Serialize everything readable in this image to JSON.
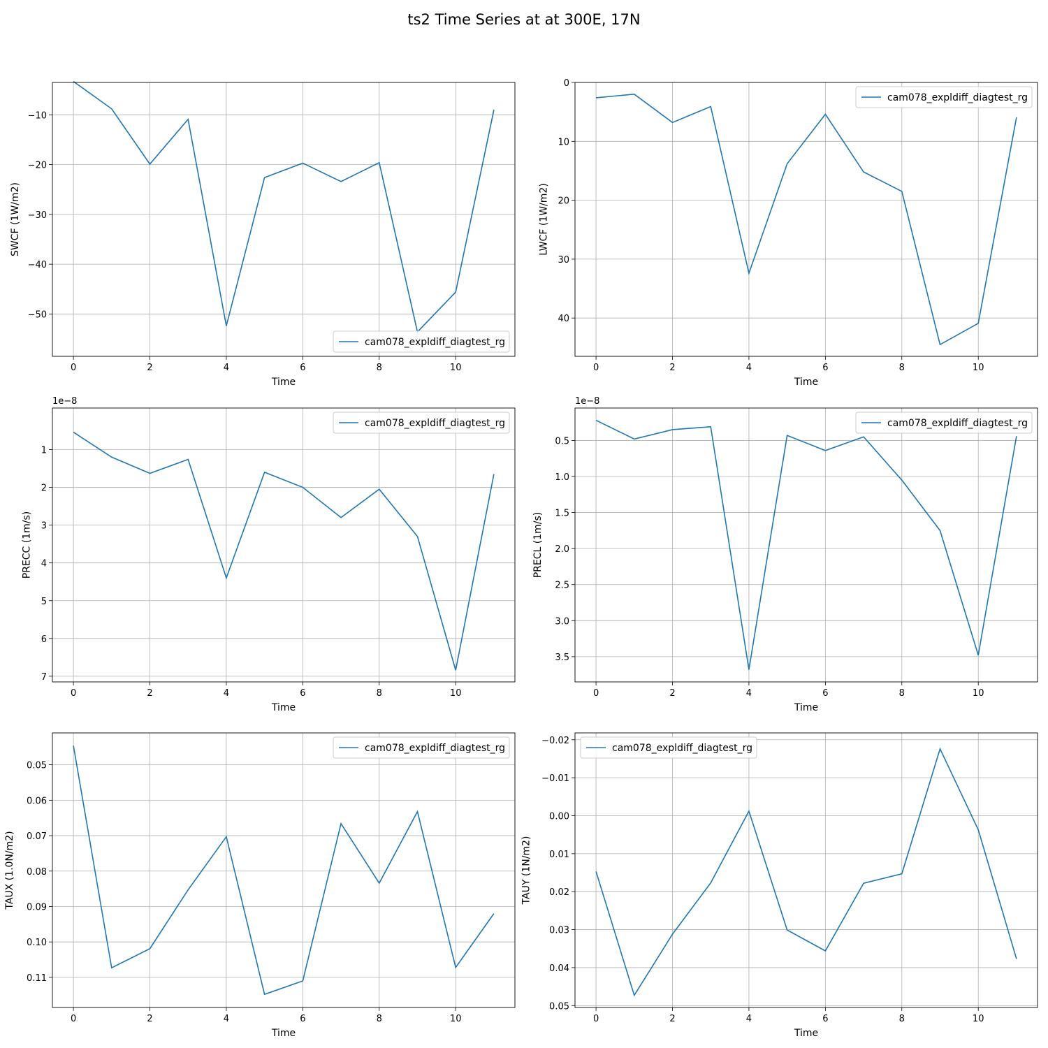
{
  "title": "ts2 Time Series at at 300E, 17N",
  "colors": {
    "line": "#1f77b4",
    "grid": "#b0b0b0",
    "axes": "#000000"
  },
  "chart_data": [
    {
      "type": "line",
      "xlabel": "Time",
      "ylabel": "SWCF (1W/m2)",
      "xlim": [
        -0.55,
        11.55
      ],
      "ylim": [
        -3.5,
        -58.5
      ],
      "xticks": [
        "0",
        "2",
        "4",
        "6",
        "8",
        "10"
      ],
      "yticks": [
        {
          "v": -10,
          "label": "−10"
        },
        {
          "v": -20,
          "label": "−20"
        },
        {
          "v": -30,
          "label": "−30"
        },
        {
          "v": -40,
          "label": "−40"
        },
        {
          "v": -50,
          "label": "−50"
        }
      ],
      "offset": "",
      "legend_loc": "lower-right",
      "grid": true,
      "series": [
        {
          "name": "cam078_expldiff_diagtest_rg",
          "x": [
            0,
            1,
            2,
            3,
            4,
            5,
            6,
            7,
            8,
            9,
            10,
            11
          ],
          "y": [
            -3.3,
            -8.8,
            -19.9,
            -10.9,
            -52.4,
            -22.6,
            -19.7,
            -23.4,
            -19.6,
            -53.6,
            -45.6,
            -9.0
          ]
        }
      ]
    },
    {
      "type": "line",
      "xlabel": "Time",
      "ylabel": "LWCF (1W/m2)",
      "xlim": [
        -0.55,
        11.55
      ],
      "ylim": [
        0,
        46.5
      ],
      "xticks": [
        "0",
        "2",
        "4",
        "6",
        "8",
        "10"
      ],
      "yticks": [
        {
          "v": 0,
          "label": "0"
        },
        {
          "v": 10,
          "label": "10"
        },
        {
          "v": 20,
          "label": "20"
        },
        {
          "v": 30,
          "label": "30"
        },
        {
          "v": 40,
          "label": "40"
        }
      ],
      "offset": "",
      "legend_loc": "upper-right",
      "grid": true,
      "series": [
        {
          "name": "cam078_expldiff_diagtest_rg",
          "x": [
            0,
            1,
            2,
            3,
            4,
            5,
            6,
            7,
            8,
            9,
            10,
            11
          ],
          "y": [
            2.6,
            2.0,
            6.8,
            4.1,
            32.4,
            13.8,
            5.4,
            15.2,
            18.5,
            44.5,
            40.9,
            5.9
          ]
        }
      ]
    },
    {
      "type": "line",
      "xlabel": "Time",
      "ylabel": "PRECC (1m/s)",
      "xlim": [
        -0.55,
        11.55
      ],
      "ylim": [
        -0.1,
        7.15
      ],
      "xticks": [
        "0",
        "2",
        "4",
        "6",
        "8",
        "10"
      ],
      "yticks": [
        {
          "v": 1,
          "label": "1"
        },
        {
          "v": 2,
          "label": "2"
        },
        {
          "v": 3,
          "label": "3"
        },
        {
          "v": 4,
          "label": "4"
        },
        {
          "v": 5,
          "label": "5"
        },
        {
          "v": 6,
          "label": "6"
        },
        {
          "v": 7,
          "label": "7"
        }
      ],
      "offset": "1e−8",
      "legend_loc": "upper-right",
      "grid": true,
      "series": [
        {
          "name": "cam078_expldiff_diagtest_rg",
          "x": [
            0,
            1,
            2,
            3,
            4,
            5,
            6,
            7,
            8,
            9,
            10,
            11
          ],
          "y": [
            0.54,
            1.2,
            1.63,
            1.26,
            4.4,
            1.6,
            2.0,
            2.8,
            2.05,
            3.3,
            6.84,
            1.65
          ]
        }
      ]
    },
    {
      "type": "line",
      "xlabel": "Time",
      "ylabel": "PRECL (1m/s)",
      "xlim": [
        -0.55,
        11.55
      ],
      "ylim": [
        0.05,
        3.85
      ],
      "xticks": [
        "0",
        "2",
        "4",
        "6",
        "8",
        "10"
      ],
      "yticks": [
        {
          "v": 0.5,
          "label": "0.5"
        },
        {
          "v": 1.0,
          "label": "1.0"
        },
        {
          "v": 1.5,
          "label": "1.5"
        },
        {
          "v": 2.0,
          "label": "2.0"
        },
        {
          "v": 2.5,
          "label": "2.5"
        },
        {
          "v": 3.0,
          "label": "3.0"
        },
        {
          "v": 3.5,
          "label": "3.5"
        }
      ],
      "offset": "1e−8",
      "legend_loc": "upper-right",
      "grid": true,
      "series": [
        {
          "name": "cam078_expldiff_diagtest_rg",
          "x": [
            0,
            1,
            2,
            3,
            4,
            5,
            6,
            7,
            8,
            9,
            10,
            11
          ],
          "y": [
            0.22,
            0.48,
            0.35,
            0.31,
            3.68,
            0.43,
            0.64,
            0.45,
            1.05,
            1.75,
            3.48,
            0.44
          ]
        }
      ]
    },
    {
      "type": "line",
      "xlabel": "Time",
      "ylabel": "TAUX (1.0N/m2)",
      "xlim": [
        -0.55,
        11.55
      ],
      "ylim": [
        0.041,
        0.1185
      ],
      "xticks": [
        "0",
        "2",
        "4",
        "6",
        "8",
        "10"
      ],
      "yticks": [
        {
          "v": 0.05,
          "label": "0.05"
        },
        {
          "v": 0.06,
          "label": "0.06"
        },
        {
          "v": 0.07,
          "label": "0.07"
        },
        {
          "v": 0.08,
          "label": "0.08"
        },
        {
          "v": 0.09,
          "label": "0.09"
        },
        {
          "v": 0.1,
          "label": "0.10"
        },
        {
          "v": 0.11,
          "label": "0.11"
        }
      ],
      "offset": "",
      "legend_loc": "upper-right",
      "grid": true,
      "series": [
        {
          "name": "cam078_expldiff_diagtest_rg",
          "x": [
            0,
            1,
            2,
            3,
            4,
            5,
            6,
            7,
            8,
            9,
            10,
            11
          ],
          "y": [
            0.0446,
            0.1073,
            0.1019,
            0.0853,
            0.0703,
            0.1148,
            0.111,
            0.0666,
            0.0834,
            0.0632,
            0.1072,
            0.092
          ]
        }
      ]
    },
    {
      "type": "line",
      "xlabel": "Time",
      "ylabel": "TAUY (1N/m2)",
      "xlim": [
        -0.55,
        11.55
      ],
      "ylim": [
        -0.0218,
        0.0505
      ],
      "xticks": [
        "0",
        "2",
        "4",
        "6",
        "8",
        "10"
      ],
      "yticks": [
        {
          "v": -0.02,
          "label": "−0.02"
        },
        {
          "v": -0.01,
          "label": "−0.01"
        },
        {
          "v": 0.0,
          "label": "0.00"
        },
        {
          "v": 0.01,
          "label": "0.01"
        },
        {
          "v": 0.02,
          "label": "0.02"
        },
        {
          "v": 0.03,
          "label": "0.03"
        },
        {
          "v": 0.04,
          "label": "0.04"
        },
        {
          "v": 0.05,
          "label": "0.05"
        }
      ],
      "offset": "",
      "legend_loc": "upper-left",
      "grid": true,
      "series": [
        {
          "name": "cam078_expldiff_diagtest_rg",
          "x": [
            0,
            1,
            2,
            3,
            4,
            5,
            6,
            7,
            8,
            9,
            10,
            11
          ],
          "y": [
            0.0147,
            0.0473,
            0.0312,
            0.0177,
            -0.0012,
            0.0301,
            0.0356,
            0.0178,
            0.0153,
            -0.0176,
            0.0037,
            0.0377
          ]
        }
      ]
    }
  ]
}
